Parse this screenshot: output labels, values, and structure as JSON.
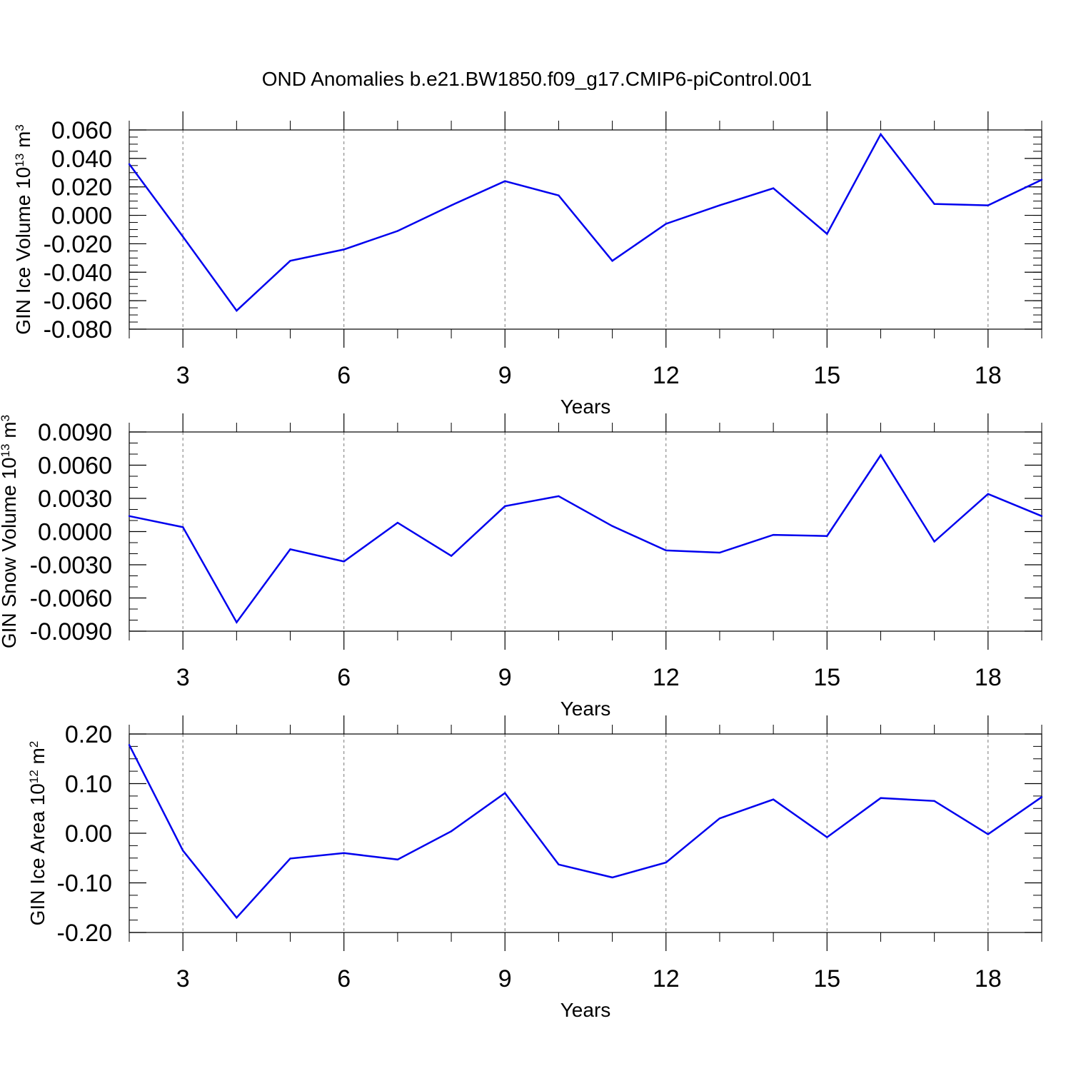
{
  "title": "OND Anomalies b.e21.BW1850.f09_g17.CMIP6-piControl.001",
  "colors": {
    "line": "#0000ee",
    "frame": "#000000",
    "grid": "#777777"
  },
  "chart_data": [
    {
      "type": "line",
      "ylabel": {
        "text": "GIN Ice Volume 10",
        "sup1": "13",
        "mid": " m",
        "sup2": "3"
      },
      "xlabel": "Years",
      "xlim": [
        2,
        19
      ],
      "ylim": [
        -0.08,
        0.06
      ],
      "x_ticks": [
        3,
        6,
        9,
        12,
        15,
        18
      ],
      "x_tick_labels": [
        "3",
        "6",
        "9",
        "12",
        "15",
        "18"
      ],
      "y_ticks": [
        0.06,
        0.04,
        0.02,
        0.0,
        -0.02,
        -0.04,
        -0.06,
        -0.08
      ],
      "y_tick_labels": [
        "0.060",
        "0.040",
        "0.020",
        "0.000",
        "-0.020",
        "-0.040",
        "-0.060",
        "-0.080"
      ],
      "y_minor_step": 0.005,
      "grid": "vertical dashed at major x ticks",
      "x": [
        2,
        3,
        4,
        5,
        6,
        7,
        8,
        9,
        10,
        11,
        12,
        13,
        14,
        15,
        16,
        17,
        18,
        19
      ],
      "values": [
        0.036,
        -0.015,
        -0.067,
        -0.032,
        -0.024,
        -0.011,
        0.007,
        0.024,
        0.014,
        -0.032,
        -0.006,
        0.007,
        0.019,
        -0.013,
        0.057,
        0.008,
        0.007,
        0.025
      ]
    },
    {
      "type": "line",
      "ylabel": {
        "text": "GIN Snow Volume 10",
        "sup1": "13",
        "mid": " m",
        "sup2": "3"
      },
      "xlabel": "Years",
      "xlim": [
        2,
        19
      ],
      "ylim": [
        -0.009,
        0.009
      ],
      "x_ticks": [
        3,
        6,
        9,
        12,
        15,
        18
      ],
      "x_tick_labels": [
        "3",
        "6",
        "9",
        "12",
        "15",
        "18"
      ],
      "y_ticks": [
        0.009,
        0.006,
        0.003,
        0.0,
        -0.003,
        -0.006,
        -0.009
      ],
      "y_tick_labels": [
        "0.0090",
        "0.0060",
        "0.0030",
        "0.0000",
        "-0.0030",
        "-0.0060",
        "-0.0090"
      ],
      "y_minor_step": 0.001,
      "grid": "vertical dashed at major x ticks",
      "x": [
        2,
        3,
        4,
        5,
        6,
        7,
        8,
        9,
        10,
        11,
        12,
        13,
        14,
        15,
        16,
        17,
        18,
        19
      ],
      "values": [
        0.0014,
        0.0004,
        -0.0082,
        -0.0016,
        -0.0027,
        0.0008,
        -0.0022,
        0.0023,
        0.0032,
        0.0005,
        -0.0017,
        -0.0019,
        -0.0003,
        -0.0004,
        0.0069,
        -0.0009,
        0.0034,
        0.0014
      ]
    },
    {
      "type": "line",
      "ylabel": {
        "text": "GIN Ice Area 10",
        "sup1": "12",
        "mid": " m",
        "sup2": "2"
      },
      "xlabel": "Years",
      "xlim": [
        2,
        19
      ],
      "ylim": [
        -0.2,
        0.2
      ],
      "x_ticks": [
        3,
        6,
        9,
        12,
        15,
        18
      ],
      "x_tick_labels": [
        "3",
        "6",
        "9",
        "12",
        "15",
        "18"
      ],
      "y_ticks": [
        0.2,
        0.1,
        0.0,
        -0.1,
        -0.2
      ],
      "y_tick_labels": [
        "0.20",
        "0.10",
        "0.00",
        "-0.10",
        "-0.20"
      ],
      "y_minor_step": 0.025,
      "grid": "vertical dashed at major x ticks",
      "x": [
        2,
        3,
        4,
        5,
        6,
        7,
        8,
        9,
        10,
        11,
        12,
        13,
        14,
        15,
        16,
        17,
        18,
        19
      ],
      "values": [
        0.178,
        -0.035,
        -0.17,
        -0.051,
        -0.04,
        -0.053,
        0.004,
        0.081,
        -0.063,
        -0.089,
        -0.059,
        0.03,
        0.068,
        -0.008,
        0.071,
        0.065,
        -0.002,
        0.073
      ]
    }
  ]
}
